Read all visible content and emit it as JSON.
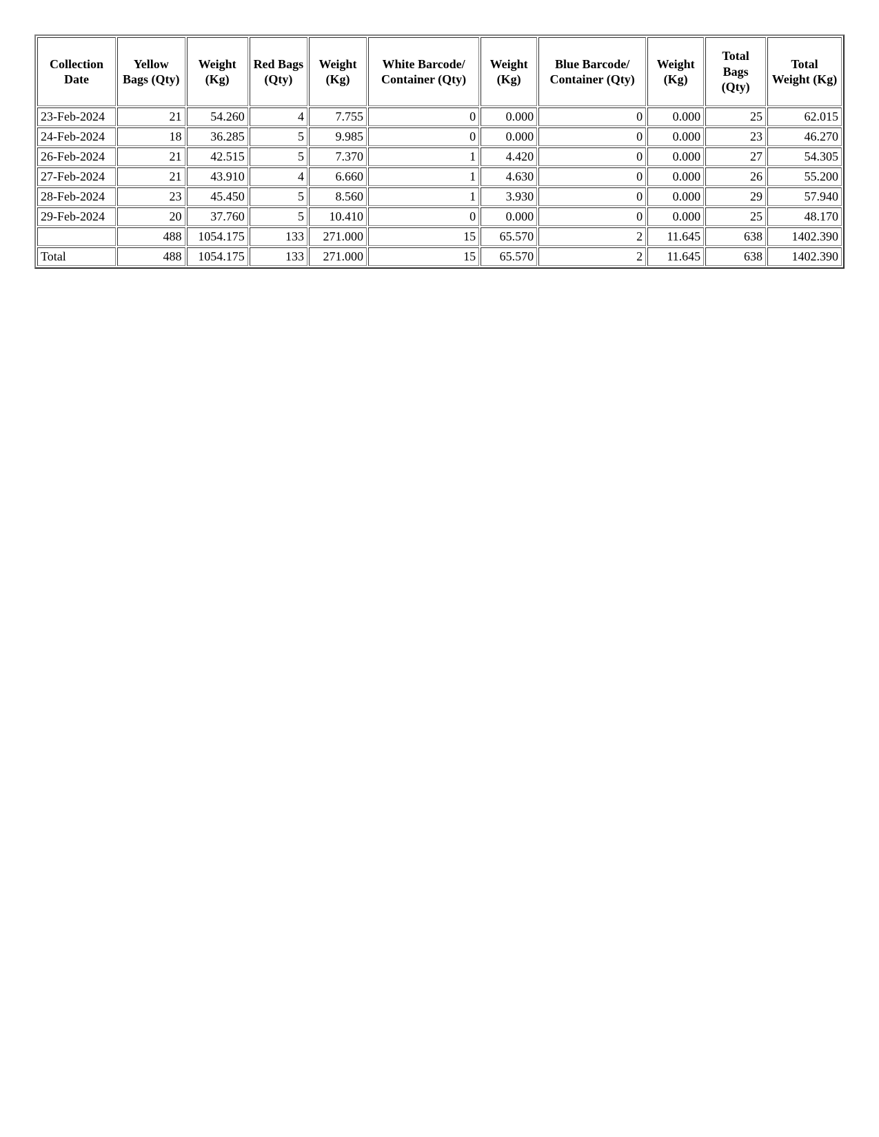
{
  "table": {
    "type": "table",
    "background_color": "#ffffff",
    "border_color": "#808080",
    "font_family": "Times New Roman",
    "header_fontsize": 18,
    "body_fontsize": 18,
    "header_fontweight": "bold",
    "columns": [
      "Collection Date",
      "Yellow Bags (Qty)",
      "Weight (Kg)",
      "Red Bags (Qty)",
      "Weight (Kg)",
      "White Barcode/ Container (Qty)",
      "Weight (Kg)",
      "Blue Barcode/ Container (Qty)",
      "Weight (Kg)",
      "Total Bags (Qty)",
      "Total Weight (Kg)"
    ],
    "column_align": [
      "left",
      "right",
      "right",
      "right",
      "right",
      "right",
      "right",
      "right",
      "right",
      "right",
      "right"
    ],
    "rows": [
      [
        "23-Feb-2024",
        "21",
        "54.260",
        "4",
        "7.755",
        "0",
        "0.000",
        "0",
        "0.000",
        "25",
        "62.015"
      ],
      [
        "24-Feb-2024",
        "18",
        "36.285",
        "5",
        "9.985",
        "0",
        "0.000",
        "0",
        "0.000",
        "23",
        "46.270"
      ],
      [
        "26-Feb-2024",
        "21",
        "42.515",
        "5",
        "7.370",
        "1",
        "4.420",
        "0",
        "0.000",
        "27",
        "54.305"
      ],
      [
        "27-Feb-2024",
        "21",
        "43.910",
        "4",
        "6.660",
        "1",
        "4.630",
        "0",
        "0.000",
        "26",
        "55.200"
      ],
      [
        "28-Feb-2024",
        "23",
        "45.450",
        "5",
        "8.560",
        "1",
        "3.930",
        "0",
        "0.000",
        "29",
        "57.940"
      ],
      [
        "29-Feb-2024",
        "20",
        "37.760",
        "5",
        "10.410",
        "0",
        "0.000",
        "0",
        "0.000",
        "25",
        "48.170"
      ],
      [
        "",
        "488",
        "1054.175",
        "133",
        "271.000",
        "15",
        "65.570",
        "2",
        "11.645",
        "638",
        "1402.390"
      ],
      [
        "Total",
        "488",
        "1054.175",
        "133",
        "271.000",
        "15",
        "65.570",
        "2",
        "11.645",
        "638",
        "1402.390"
      ]
    ]
  }
}
